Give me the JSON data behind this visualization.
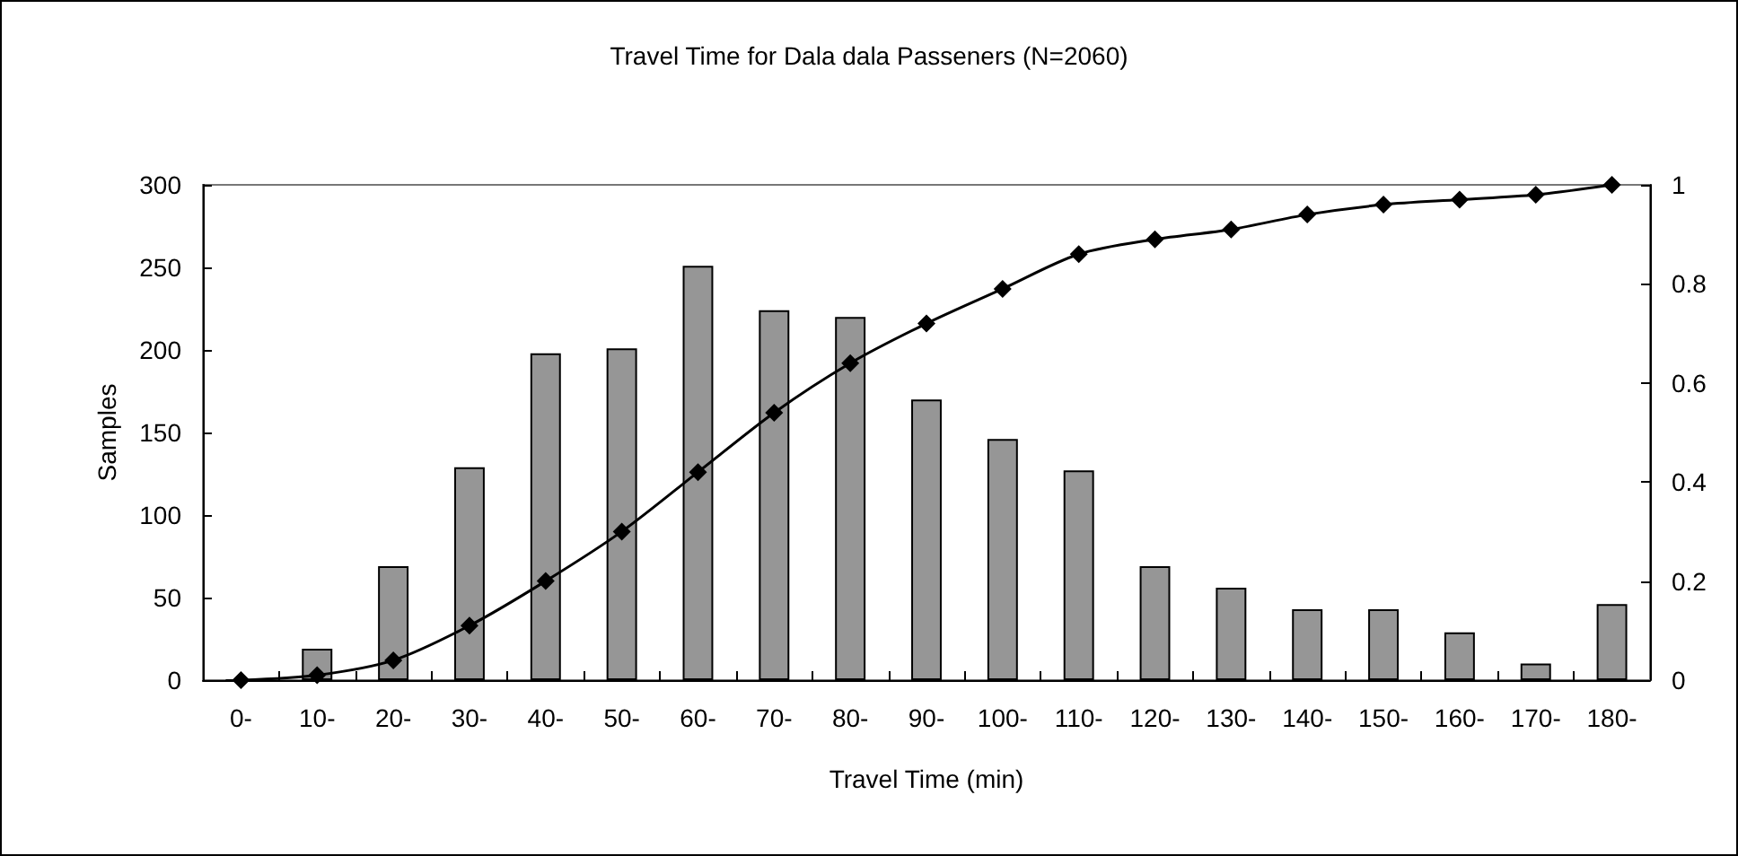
{
  "chart_data": {
    "type": "bar",
    "title": "Travel Time for Dala dala Passeners (N=2060)",
    "xlabel": "Travel Time (min)",
    "ylabel": "Samples",
    "categories": [
      "0-",
      "10-",
      "20-",
      "30-",
      "40-",
      "50-",
      "60-",
      "70-",
      "80-",
      "90-",
      "100-",
      "110-",
      "120-",
      "130-",
      "140-",
      "150-",
      "160-",
      "170-",
      "180-"
    ],
    "series": [
      {
        "color": "#969696",
        "values": [
          0,
          19,
          69,
          129,
          198,
          201,
          251,
          224,
          220,
          170,
          146,
          127,
          69,
          56,
          43,
          43,
          29,
          10,
          46
        ]
      },
      {
        "type": "line",
        "axis": "y2",
        "color": "#000000",
        "marker": "diamond",
        "values": [
          0,
          0.01,
          0.04,
          0.11,
          0.2,
          0.3,
          0.42,
          0.54,
          0.64,
          0.72,
          0.79,
          0.86,
          0.89,
          0.91,
          0.94,
          0.96,
          0.97,
          0.98,
          1.0
        ]
      }
    ],
    "ylim": [
      0,
      300
    ],
    "yticks": [
      0,
      50,
      100,
      150,
      200,
      250,
      300
    ],
    "y2lim": [
      0,
      1
    ],
    "y2ticks": [
      0,
      0.2,
      0.4,
      0.6,
      0.8,
      1
    ],
    "grid": false
  }
}
